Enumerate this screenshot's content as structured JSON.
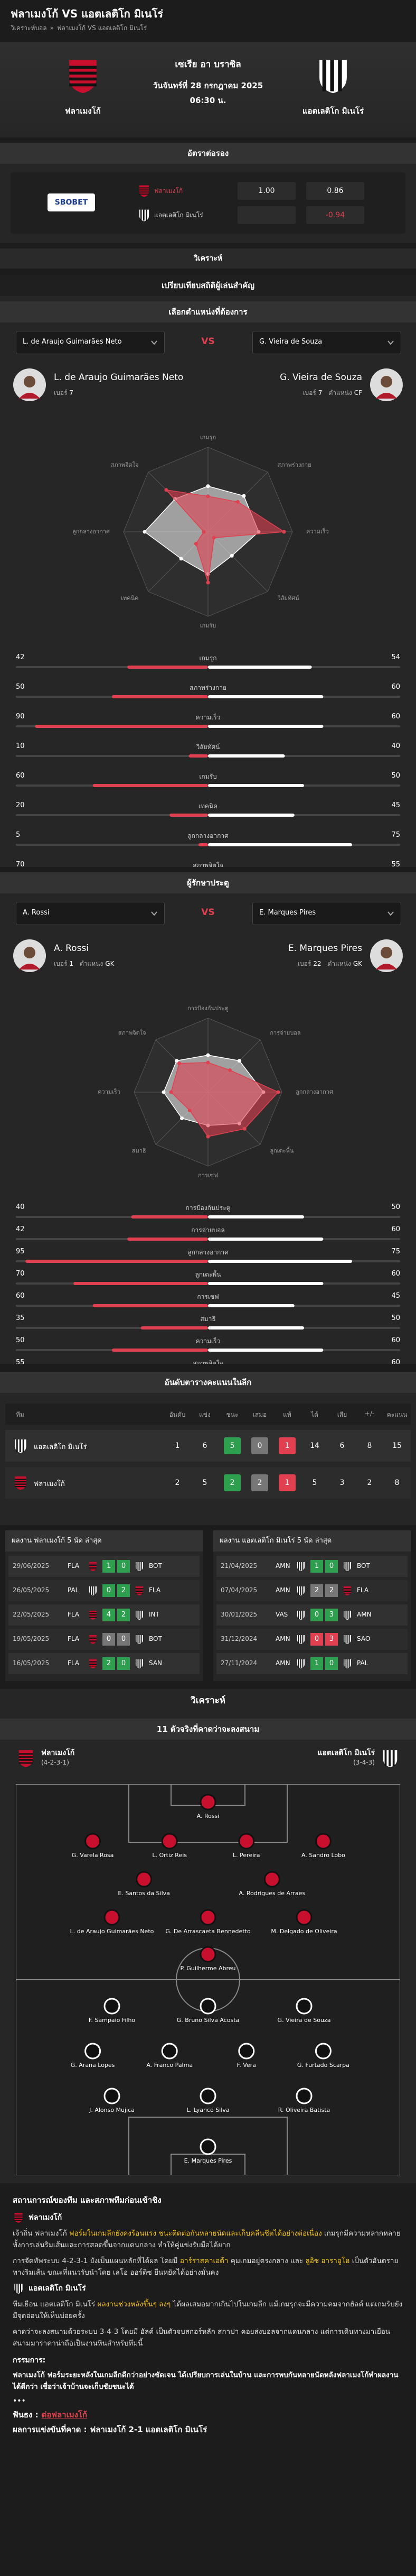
{
  "header": {
    "title": "ฟลาเมงโก้ VS แอตเลติโก มิเนโร่",
    "breadcrumb": [
      "วิเคราะห์บอล",
      "»",
      "ฟลาเมงโก้ VS แอตเลติโก มิเนโร่"
    ]
  },
  "match": {
    "league": "เซเรีย อา บราซิล",
    "date": "วันจันทร์ที่ 28 กรกฎาคม 2025",
    "time": "06:30 น.",
    "home": "ฟลาเมงโก้",
    "away": "แอตเลติโก มิเนโร่"
  },
  "odds": {
    "title": "อัตราต่อรอง",
    "bookmaker": "SBOBET",
    "rows": [
      {
        "team": "ฟลาเมงโก้",
        "handicap": "1.00",
        "price": "0.86"
      },
      {
        "team": "แอตเลติโก มิเนโร่",
        "price": "-0.94"
      }
    ]
  },
  "analysis_heading": "วิเคราะห์",
  "players": {
    "title": "เปรียบเทียบสถิติผู้เล่นสำคัญ",
    "subtitle": "เลือกตำแหน่งที่ต้องการ",
    "vs": "VS",
    "left": {
      "name": "L. de Araujo Guimarães Neto",
      "number_label": "เบอร์",
      "number": "7",
      "color": "#e04050"
    },
    "right": {
      "name": "G. Vieira de Souza",
      "number_label": "เบอร์",
      "number": "7",
      "position_label": "ตำแหน่ง",
      "position": "CF",
      "color": "#ffffff"
    },
    "rlim": [
      0,
      100
    ],
    "stats": {
      "labels": [
        "เกมรุก",
        "สภาพร่างกาย",
        "ความเร็ว",
        "วิสัยทัศน์",
        "เกมรับ",
        "เทคนิค",
        "ลูกกลางอากาศ",
        "สภาพจิตใจ"
      ],
      "left": [
        42,
        50,
        90,
        10,
        60,
        20,
        5,
        70
      ],
      "right": [
        54,
        60,
        60,
        40,
        50,
        45,
        75,
        55
      ]
    }
  },
  "goalkeepers": {
    "title": "ผู้รักษาประตู",
    "vs": "VS",
    "left": {
      "name": "A. Rossi",
      "number_label": "เบอร์",
      "number": "1",
      "position_label": "ตำแหน่ง",
      "position": "GK",
      "color": "#e04050"
    },
    "right": {
      "name": "E. Marques Pires",
      "number_label": "เบอร์",
      "number": "22",
      "position_label": "ตำแหน่ง",
      "position": "GK",
      "color": "#ffffff"
    },
    "rlim": [
      0,
      100
    ],
    "stats": {
      "labels": [
        "การป้องกันประตู",
        "การจ่ายบอล",
        "ลูกกลางอากาศ",
        "ลูกเตะพื้น",
        "การเซฟ",
        "สมาธิ",
        "ความเร็ว",
        "สภาพจิตใจ"
      ],
      "left": [
        40,
        42,
        95,
        70,
        60,
        35,
        50,
        55
      ],
      "right": [
        50,
        60,
        75,
        60,
        45,
        50,
        60,
        60
      ]
    }
  },
  "table": {
    "title": "อันดับตารางคะแนนในลีก",
    "columns": [
      "ทีม",
      "อันดับ",
      "แข่ง",
      "ชนะ",
      "เสมอ",
      "แพ้",
      "ได้",
      "เสีย",
      "+/-",
      "คะแนน"
    ],
    "rows": [
      {
        "team": "แอตเลติโก มิเนโร่",
        "values": [
          1,
          6,
          5,
          0,
          1,
          14,
          6,
          8,
          15
        ]
      },
      {
        "team": "ฟลาเมงโก้",
        "values": [
          2,
          5,
          2,
          2,
          1,
          5,
          3,
          2,
          8
        ]
      }
    ]
  },
  "form": [
    {
      "title": "ผลงาน ฟลาเมงโก้ 5 นัด ล่าสุด",
      "matches": [
        {
          "date": "29/06/2025",
          "home": "FLA",
          "home_score": 1,
          "away_score": 0,
          "away": "BOT",
          "color": "#2e9e4f"
        },
        {
          "date": "26/05/2025",
          "home": "PAL",
          "home_score": 0,
          "away_score": 2,
          "away": "FLA",
          "color": "#2e9e4f"
        },
        {
          "date": "22/05/2025",
          "home": "FLA",
          "home_score": 4,
          "away_score": 2,
          "away": "INT",
          "color": "#2e9e4f"
        },
        {
          "date": "19/05/2025",
          "home": "FLA",
          "home_score": 0,
          "away_score": 0,
          "away": "BOT",
          "color": "#777777"
        },
        {
          "date": "16/05/2025",
          "home": "FLA",
          "home_score": 2,
          "away_score": 0,
          "away": "SAN",
          "color": "#2e9e4f"
        }
      ]
    },
    {
      "title": "ผลงาน แอตเลติโก มิเนโร่ 5 นัด ล่าสุด",
      "matches": [
        {
          "date": "21/04/2025",
          "home": "AMN",
          "home_score": 1,
          "away_score": 0,
          "away": "BOT",
          "color": "#2e9e4f"
        },
        {
          "date": "07/04/2025",
          "home": "AMN",
          "home_score": 2,
          "away_score": 2,
          "away": "FLA",
          "color": "#777777"
        },
        {
          "date": "30/01/2025",
          "home": "VAS",
          "home_score": 0,
          "away_score": 3,
          "away": "AMN",
          "color": "#2e9e4f"
        },
        {
          "date": "31/12/2024",
          "home": "AMN",
          "home_score": 0,
          "away_score": 3,
          "away": "SAO",
          "color": "#e04050"
        },
        {
          "date": "27/11/2024",
          "home": "AMN",
          "home_score": 1,
          "away_score": 0,
          "away": "PAL",
          "color": "#2e9e4f"
        }
      ]
    }
  ],
  "lineup": {
    "heading": "วิเคราะห์",
    "title": "11 ตัวจริงที่คาดว่าจะลงสนาม",
    "home": {
      "name": "ฟลาเมงโก้",
      "formation": "(4-2-3-1)",
      "rows": [
        [
          "A. Rossi"
        ],
        [
          "G. Varela Rosa",
          "L. Ortiz Reis",
          "L. Pereira",
          "A. Sandro Lobo"
        ],
        [
          "E. Santos da Silva",
          "A. Rodrigues de Arraes"
        ],
        [
          "L. de Araujo Guimarães Neto",
          "G. De Arrascaeta Bennedetto",
          "M. Delgado de Oliveira"
        ],
        [
          "P. Guilherme Abreu"
        ]
      ]
    },
    "away": {
      "name": "แอตเลติโก มิเนโร่",
      "formation": "(3-4-3)",
      "rows": [
        [
          "F. Sampaio Filho",
          "G. Bruno Silva Acosta",
          "G. Vieira de Souza"
        ],
        [
          "G. Arana Lopes",
          "A. Franco Palma",
          "F. Vera",
          "G. Furtado Scarpa"
        ],
        [
          "J. Alonso Mujica",
          "L. Lyanco Silva",
          "R. Oliveira Batista"
        ],
        [
          "E. Marques Pires"
        ]
      ]
    }
  },
  "report": {
    "title": "สถานการณ์ของทีม และสภาพทีมก่อนเข้าชิง",
    "home_heading": "ฟลาเมงโก้",
    "home_paragraphs": [
      [
        {
          "text": "เจ้าถิ่น ฟลาเมงโก้ "
        },
        {
          "text": "ฟอร์มในเกมลีกยังคงร้อนแรง ชนะติดต่อกันหลายนัดและเก็บคลีนชีตได้อย่างต่อเนื่อง",
          "color": "#f5c518"
        },
        {
          "text": " เกมรุกมีความหลากหลาย ทั้งการเล่นริมเส้นและการสอดขึ้นจากแดนกลาง ทำให้คู่แข่งรับมือได้ยาก"
        }
      ],
      [
        {
          "text": "การจัดทัพระบบ 4-2-3-1 ยังเป็นแผนหลักที่ได้ผล โดยมี "
        },
        {
          "text": "อาร์ราสคาเอต้า",
          "color": "#f5c518"
        },
        {
          "text": " คุมเกมอยู่ตรงกลาง และ "
        },
        {
          "text": "ลูอิซ อาราอูโฮ",
          "color": "#f5c518"
        },
        {
          "text": " เป็นตัวอันตรายทางริมเส้น ขณะที่แนวรับนำโดย เลโอ ออร์ติซ ยืนหยัดได้อย่างมั่นคง"
        }
      ]
    ],
    "away_heading": "แอตเลติโก มิเนโร่",
    "away_paragraphs": [
      [
        {
          "text": "ทีมเยือน แอตเลติโก มิเนโร่ "
        },
        {
          "text": "ผลงานช่วงหลังขึ้นๆ ลงๆ",
          "color": "#f5c518"
        },
        {
          "text": " ได้ผลเสมอมากเกินไปในเกมลีก แม้เกมรุกจะมีความคมจากฮัลค์ แต่เกมรับยังมีจุดอ่อนให้เห็นบ่อยครั้ง"
        }
      ],
      [
        {
          "text": "คาดว่าจะลงสนามด้วยระบบ 3-4-3 โดยมี ฮัลค์ เป็นตัวจบสกอร์หลัก สกาปา คอยส่งบอลจากแดนกลาง แต่การเดินทางมาเยือนสนามมาราคาน่าถือเป็นงานหินสำหรับทีมนี้"
        }
      ]
    ],
    "referee_label": "กรรมการ:",
    "verdict": "ฟลาเมงโก้ ฟอร์มระยะหลังในเกมลีกดีกว่าอย่างชัดเจน ได้เปรียบการเล่นในบ้าน และการพบกันหลายนัดหลังฟลาเมงโก้ทำผลงานได้ดีกว่า เชื่อว่าเจ้าบ้านจะเก็บชัยชนะได้",
    "separator": "•••",
    "prediction_label": "ฟันธง :",
    "prediction": "ต่อฟลาเมงโก้",
    "score_label": "ผลการแข่งขันที่คาด :",
    "score": "ฟลาเมงโก้ 2-1 แอตเลติโก มิเนโร่"
  }
}
